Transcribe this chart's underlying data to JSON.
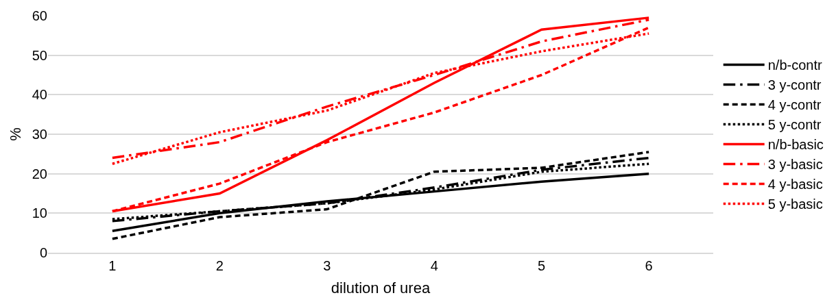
{
  "chart_data": {
    "type": "line",
    "xlabel": "dilution of urea",
    "ylabel": "%",
    "categories": [
      "1",
      "2",
      "3",
      "4",
      "5",
      "6"
    ],
    "ylim": [
      0,
      60
    ],
    "yticks": [
      0,
      10,
      20,
      30,
      40,
      50,
      60
    ],
    "grid": "y",
    "legend": "right",
    "marker": "none",
    "series": [
      {
        "name": "n/b-contr",
        "color": "#000000",
        "line_style": "solid",
        "values": [
          5.5,
          10,
          13,
          15.5,
          18,
          20
        ]
      },
      {
        "name": "3 y-contr",
        "color": "#000000",
        "line_style": "dashdot",
        "values": [
          8,
          10.5,
          12.5,
          16.5,
          21,
          24
        ]
      },
      {
        "name": "4 y-contr",
        "color": "#000000",
        "line_style": "dashed",
        "values": [
          3.5,
          9,
          11,
          20.5,
          21.5,
          25.5
        ]
      },
      {
        "name": "5 y-contr",
        "color": "#000000",
        "line_style": "dotted",
        "values": [
          8.5,
          10.5,
          12.5,
          16,
          20.5,
          22.5
        ]
      },
      {
        "name": "n/b-basic",
        "color": "#ff0000",
        "line_style": "solid",
        "values": [
          10.5,
          15,
          28.5,
          43,
          56.5,
          59.5
        ]
      },
      {
        "name": "3 y-basic",
        "color": "#ff0000",
        "line_style": "dashdot",
        "values": [
          24,
          28,
          37,
          45,
          53.5,
          59
        ]
      },
      {
        "name": "4 y-basic",
        "color": "#ff0000",
        "line_style": "dashed",
        "values": [
          10.5,
          17.5,
          28,
          35.5,
          45,
          57
        ]
      },
      {
        "name": "5 y-basic",
        "color": "#ff0000",
        "line_style": "dotted",
        "values": [
          22.5,
          30.5,
          36,
          45.5,
          51,
          55.5
        ]
      }
    ]
  }
}
